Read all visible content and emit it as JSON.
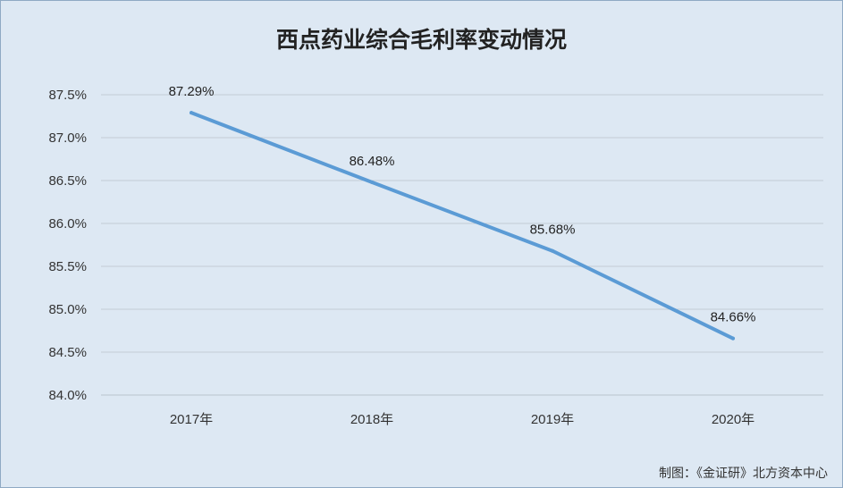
{
  "chart_data": {
    "type": "line",
    "title": "西点药业综合毛利率变动情况",
    "categories": [
      "2017年",
      "2018年",
      "2019年",
      "2020年"
    ],
    "series": [
      {
        "values": [
          87.29,
          86.48,
          85.68,
          84.66
        ],
        "data_labels": [
          "87.29%",
          "86.48%",
          "85.68%",
          "84.66%"
        ],
        "color": "#5b9bd5"
      }
    ],
    "ylim": [
      84.0,
      87.5
    ],
    "yticks": [
      84.0,
      84.5,
      85.0,
      85.5,
      86.0,
      86.5,
      87.0,
      87.5
    ],
    "ytick_labels": [
      "84.0%",
      "84.5%",
      "85.0%",
      "85.5%",
      "86.0%",
      "86.5%",
      "87.0%",
      "87.5%"
    ],
    "grid": true,
    "legend": "none"
  },
  "footer": {
    "source": "制图：《金证研》北方资本中心"
  },
  "colors": {
    "background": "#dde8f3",
    "border": "#8fa9c4",
    "gridline": "#c3ccd6",
    "line": "#5b9bd5"
  }
}
